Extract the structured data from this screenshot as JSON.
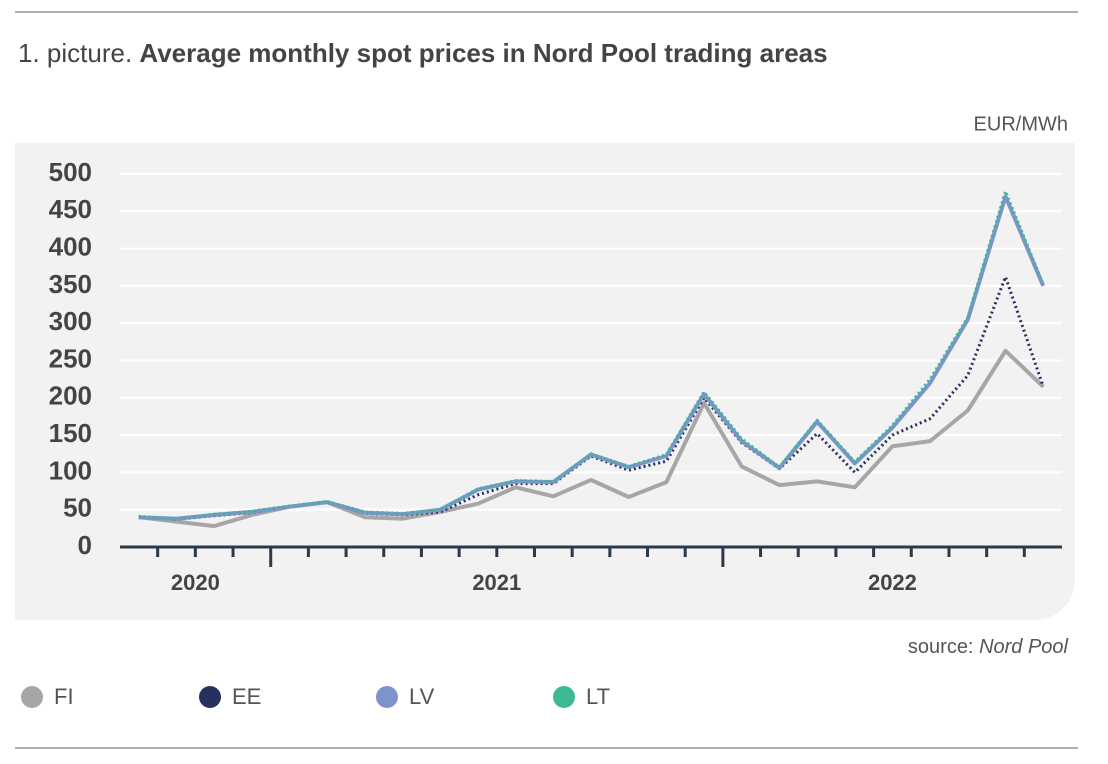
{
  "chart_data": {
    "type": "line",
    "title_prefix": "1. picture.",
    "title": "Average monthly spot prices in Nord Pool trading areas",
    "unit": "EUR/MWh",
    "source_label": "source:",
    "source": "Nord Pool",
    "categories": [
      null,
      null,
      null,
      null,
      null,
      null,
      null,
      null,
      null,
      null,
      null,
      null,
      null,
      null,
      null,
      null,
      null,
      null,
      null,
      null,
      null,
      null,
      null,
      null,
      null
    ],
    "year_groups": [
      {
        "label": "2020",
        "months": 4
      },
      {
        "label": "2021",
        "months": 12
      },
      {
        "label": "2022",
        "months": 9
      }
    ],
    "ylim": [
      0,
      500
    ],
    "yticks": [
      0,
      50,
      100,
      150,
      200,
      250,
      300,
      350,
      400,
      450,
      500
    ],
    "grid": true,
    "series": [
      {
        "name": "FI",
        "color": "#a6a6a6",
        "dash": false,
        "values": [
          40,
          34,
          28,
          43,
          54,
          60,
          40,
          38,
          47,
          58,
          80,
          68,
          90,
          67,
          87,
          193,
          108,
          83,
          88,
          80,
          135,
          142,
          183,
          263,
          215
        ]
      },
      {
        "name": "EE",
        "color": "#28305e",
        "dash": true,
        "values": [
          40,
          37,
          42,
          46,
          54,
          60,
          45,
          43,
          47,
          70,
          85,
          85,
          122,
          103,
          115,
          200,
          140,
          105,
          152,
          100,
          150,
          172,
          230,
          362,
          215
        ]
      },
      {
        "name": "LV",
        "color": "#7d93cc",
        "dash": false,
        "values": [
          40,
          38,
          43,
          47,
          54,
          60,
          46,
          44,
          50,
          77,
          88,
          87,
          124,
          107,
          122,
          205,
          142,
          106,
          168,
          112,
          160,
          220,
          305,
          470,
          350
        ]
      },
      {
        "name": "LT",
        "color": "#3cb893",
        "dash": true,
        "values": [
          41,
          38,
          44,
          48,
          55,
          61,
          47,
          45,
          50,
          78,
          89,
          88,
          125,
          108,
          124,
          208,
          145,
          107,
          170,
          114,
          163,
          225,
          308,
          477,
          352
        ]
      }
    ]
  }
}
